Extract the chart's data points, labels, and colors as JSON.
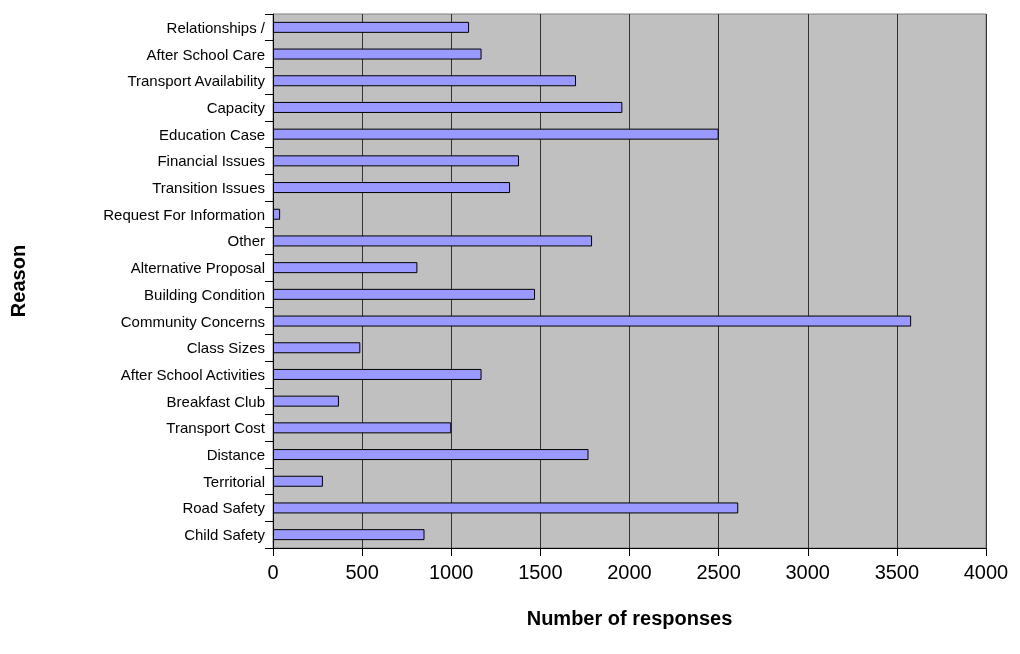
{
  "chart_data": {
    "type": "bar",
    "orientation": "horizontal",
    "xlabel": "Number of responses",
    "ylabel": "Reason",
    "categories": [
      "Relationships /",
      "After School Care",
      "Transport Availability",
      "Capacity",
      "Education Case",
      "Financial Issues",
      "Transition Issues",
      "Request For Information",
      "Other",
      "Alternative Proposal",
      "Building Condition",
      "Community Concerns",
      "Class Sizes",
      "After School Activities",
      "Breakfast Club",
      "Transport Cost",
      "Distance",
      "Territorial",
      "Road Safety",
      "Child Safety"
    ],
    "values": [
      1100,
      1170,
      1700,
      1960,
      2500,
      1380,
      1330,
      40,
      1790,
      810,
      1470,
      3580,
      490,
      1170,
      370,
      1000,
      1770,
      280,
      2610,
      850
    ],
    "color": "#9999ff",
    "xlim": [
      0,
      4000
    ],
    "xticks": [
      0,
      500,
      1000,
      1500,
      2000,
      2500,
      3000,
      3500,
      4000
    ],
    "grid": "x"
  }
}
